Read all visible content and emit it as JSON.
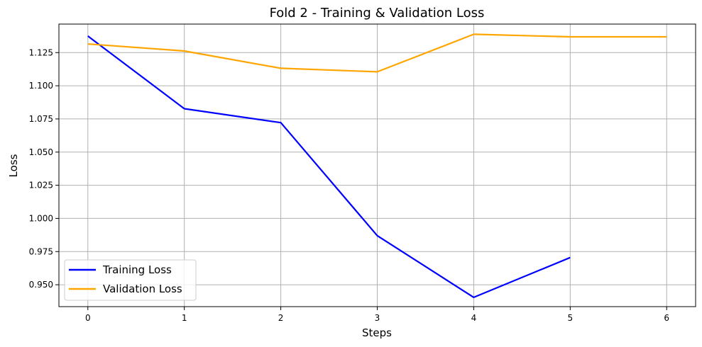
{
  "chart_data": {
    "type": "line",
    "title": "Fold 2 - Training & Validation Loss",
    "xlabel": "Steps",
    "ylabel": "Loss",
    "xlim": [
      -0.3,
      6.3
    ],
    "ylim": [
      0.9335,
      1.1465
    ],
    "x_ticks": [
      0,
      1,
      2,
      3,
      4,
      5,
      6
    ],
    "y_ticks": [
      0.95,
      0.975,
      1.0,
      1.025,
      1.05,
      1.075,
      1.1,
      1.125
    ],
    "y_tick_labels": [
      "0.950",
      "0.975",
      "1.000",
      "1.025",
      "1.050",
      "1.075",
      "1.100",
      "1.125"
    ],
    "grid": true,
    "legend_position": "lower-left",
    "series": [
      {
        "name": "Training Loss",
        "color": "#0000ff",
        "x": [
          0,
          1,
          2,
          3,
          4,
          5
        ],
        "values": [
          1.1375,
          1.0827,
          1.0722,
          0.987,
          0.9405,
          0.9705
        ]
      },
      {
        "name": "Validation Loss",
        "color": "#ffa500",
        "x": [
          0,
          1,
          2,
          3,
          4,
          5,
          6
        ],
        "values": [
          1.1315,
          1.1262,
          1.1132,
          1.1105,
          1.1388,
          1.1369,
          1.1369
        ]
      }
    ]
  }
}
